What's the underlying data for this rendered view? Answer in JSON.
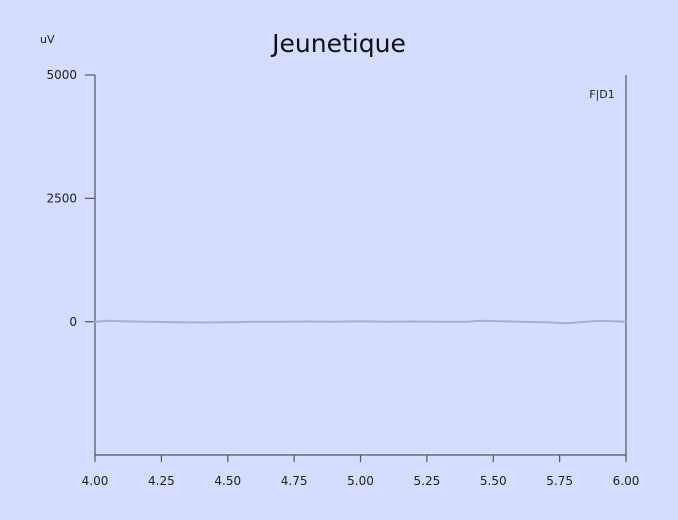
{
  "chart_data": {
    "type": "line",
    "title": "Jeunetique",
    "ylabel": "uV",
    "xlabel": "",
    "xlim": [
      4.0,
      6.0
    ],
    "ylim": [
      -2700,
      5000
    ],
    "x_ticks": [
      4.0,
      4.25,
      4.5,
      4.75,
      5.0,
      5.25,
      5.5,
      5.75,
      6.0
    ],
    "x_tick_labels": [
      "4.00",
      "4.25",
      "4.50",
      "4.75",
      "5.00",
      "5.25",
      "5.50",
      "5.75",
      "6.00"
    ],
    "y_ticks": [
      5000,
      2500,
      0
    ],
    "y_tick_labels": [
      "5000",
      "2500",
      "0"
    ],
    "grid": false,
    "legend": {
      "placement": "top-right",
      "entries": [
        "F|D1"
      ]
    },
    "series": [
      {
        "name": "F|D1",
        "color": "#9fb0d6",
        "x": [
          4.0,
          4.05,
          4.1,
          4.2,
          4.3,
          4.4,
          4.5,
          4.6,
          4.7,
          4.8,
          4.9,
          5.0,
          5.1,
          5.2,
          5.3,
          5.4,
          5.45,
          5.5,
          5.6,
          5.7,
          5.78,
          5.85,
          5.9,
          6.0
        ],
        "y": [
          0,
          20,
          10,
          0,
          -10,
          -15,
          -10,
          0,
          0,
          5,
          0,
          10,
          0,
          5,
          0,
          0,
          20,
          15,
          0,
          -10,
          -30,
          0,
          20,
          0
        ]
      }
    ]
  }
}
